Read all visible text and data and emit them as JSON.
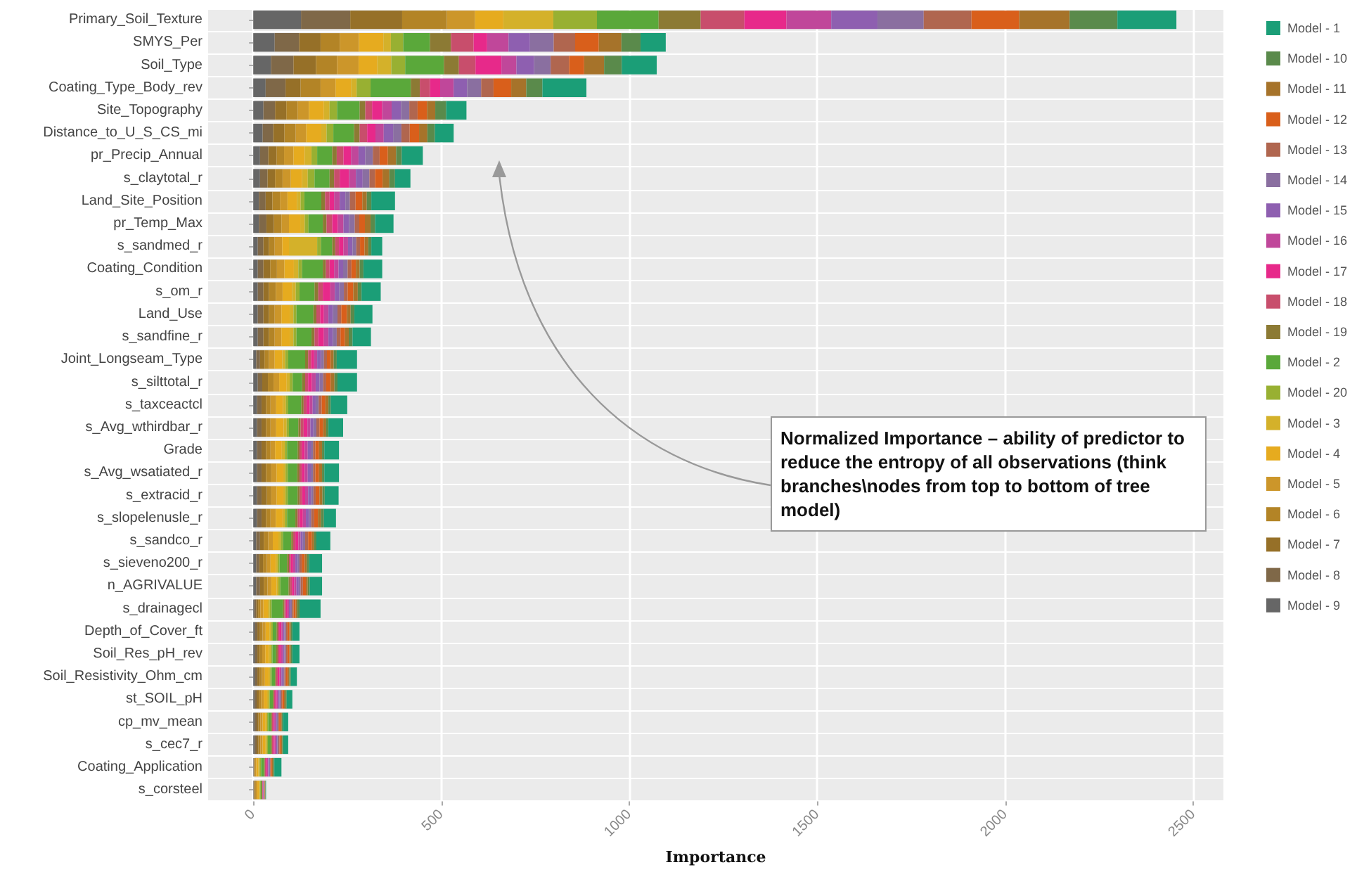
{
  "chart_data": {
    "type": "bar",
    "orientation": "horizontal",
    "stacked": true,
    "xlabel": "Importance",
    "categories": [
      "Primary_Soil_Texture",
      "SMYS_Per",
      "Soil_Type",
      "Coating_Type_Body_rev",
      "Site_Topography",
      "Distance_to_U_S_CS_mi",
      "pr_Precip_Annual",
      "s_claytotal_r",
      "Land_Site_Position",
      "pr_Temp_Max",
      "s_sandmed_r",
      "Coating_Condition",
      "s_om_r",
      "Land_Use",
      "s_sandfine_r",
      "Joint_Longseam_Type",
      "s_silttotal_r",
      "s_taxceactcl",
      "s_Avg_wthirdbar_r",
      "Grade",
      "s_Avg_wsatiated_r",
      "s_extracid_r",
      "s_slopelenusle_r",
      "s_sandco_r",
      "s_sieveno200_r",
      "n_AGRIVALUE",
      "s_drainagecl",
      "Depth_of_Cover_ft",
      "Soil_Res_pH_rev",
      "Soil_Resistivity_Ohm_cm",
      "st_SOIL_pH",
      "cp_mv_mean",
      "s_cec7_r",
      "Coating_Application",
      "s_corsteel"
    ],
    "series": [
      {
        "name": "Model - 9",
        "color": "#666666",
        "values": [
          127,
          57,
          47,
          33,
          27,
          25,
          18,
          18,
          15,
          15,
          12,
          12,
          12,
          12,
          12,
          8,
          12,
          10,
          10,
          10,
          10,
          10,
          10,
          8,
          8,
          8,
          3,
          5,
          5,
          5,
          4,
          4,
          4,
          1,
          1
        ]
      },
      {
        "name": "Model - 8",
        "color": "#7f6848",
        "values": [
          131,
          65,
          60,
          53,
          31,
          28,
          22,
          20,
          18,
          20,
          15,
          15,
          15,
          15,
          15,
          10,
          12,
          12,
          12,
          12,
          12,
          12,
          12,
          10,
          8,
          10,
          5,
          6,
          6,
          6,
          5,
          5,
          5,
          1,
          1
        ]
      },
      {
        "name": "Model - 7",
        "color": "#967028",
        "values": [
          138,
          57,
          60,
          40,
          30,
          30,
          22,
          20,
          18,
          20,
          15,
          18,
          15,
          15,
          15,
          12,
          15,
          12,
          12,
          12,
          12,
          14,
          12,
          10,
          10,
          10,
          5,
          7,
          6,
          6,
          6,
          5,
          5,
          1,
          2
        ]
      },
      {
        "name": "Model - 6",
        "color": "#b38426",
        "values": [
          119,
          51,
          56,
          53,
          30,
          30,
          20,
          20,
          20,
          20,
          15,
          18,
          18,
          15,
          15,
          12,
          15,
          12,
          12,
          12,
          14,
          12,
          12,
          12,
          10,
          10,
          6,
          7,
          7,
          6,
          6,
          5,
          5,
          2,
          3
        ]
      },
      {
        "name": "Model - 5",
        "color": "#cc962a",
        "values": [
          75,
          51,
          57,
          40,
          30,
          28,
          25,
          22,
          20,
          20,
          20,
          20,
          18,
          18,
          18,
          15,
          15,
          15,
          15,
          12,
          14,
          14,
          14,
          12,
          10,
          10,
          8,
          8,
          8,
          8,
          7,
          6,
          6,
          3,
          4
        ]
      },
      {
        "name": "Model - 4",
        "color": "#e6ab1f",
        "values": [
          75,
          65,
          50,
          41,
          40,
          40,
          30,
          30,
          25,
          30,
          18,
          25,
          25,
          22,
          22,
          20,
          20,
          18,
          20,
          18,
          18,
          18,
          18,
          15,
          14,
          14,
          12,
          10,
          10,
          10,
          9,
          8,
          8,
          6,
          4
        ]
      },
      {
        "name": "Model - 3",
        "color": "#d4b12a",
        "values": [
          133,
          20,
          37,
          15,
          15,
          14,
          18,
          15,
          10,
          12,
          75,
          12,
          10,
          10,
          10,
          8,
          8,
          8,
          8,
          8,
          6,
          6,
          6,
          6,
          5,
          5,
          5,
          5,
          5,
          4,
          4,
          4,
          3,
          3,
          3
        ]
      },
      {
        "name": "Model - 20",
        "color": "#98b032",
        "values": [
          116,
          33,
          37,
          37,
          20,
          18,
          15,
          18,
          10,
          10,
          10,
          10,
          10,
          8,
          8,
          8,
          8,
          6,
          6,
          6,
          6,
          6,
          6,
          6,
          5,
          5,
          5,
          4,
          4,
          4,
          3,
          3,
          3,
          4,
          2
        ]
      },
      {
        "name": "Model - 2",
        "color": "#5aa83a",
        "values": [
          164,
          71,
          103,
          107,
          60,
          55,
          40,
          40,
          45,
          38,
          30,
          55,
          40,
          45,
          40,
          45,
          25,
          35,
          25,
          28,
          25,
          26,
          22,
          22,
          20,
          22,
          30,
          10,
          10,
          9,
          8,
          7,
          8,
          8,
          2
        ]
      },
      {
        "name": "Model - 19",
        "color": "#8c7a34",
        "values": [
          112,
          56,
          40,
          24,
          15,
          15,
          12,
          12,
          10,
          10,
          8,
          8,
          10,
          8,
          8,
          8,
          8,
          6,
          6,
          5,
          6,
          6,
          6,
          5,
          5,
          4,
          4,
          3,
          4,
          3,
          3,
          3,
          3,
          2,
          2
        ]
      },
      {
        "name": "Model - 18",
        "color": "#c84e6c",
        "values": [
          116,
          60,
          44,
          27,
          18,
          20,
          18,
          15,
          12,
          15,
          10,
          10,
          12,
          10,
          10,
          8,
          8,
          8,
          8,
          6,
          6,
          6,
          6,
          6,
          5,
          5,
          4,
          4,
          4,
          4,
          3,
          3,
          3,
          3,
          1
        ]
      },
      {
        "name": "Model - 17",
        "color": "#e7298a",
        "values": [
          112,
          36,
          69,
          27,
          27,
          22,
          20,
          25,
          12,
          15,
          12,
          12,
          20,
          10,
          15,
          8,
          10,
          8,
          10,
          8,
          8,
          8,
          8,
          8,
          6,
          6,
          4,
          6,
          5,
          5,
          4,
          3,
          4,
          3,
          1
        ]
      },
      {
        "name": "Model - 16",
        "color": "#c0479a",
        "values": [
          119,
          57,
          40,
          36,
          25,
          22,
          20,
          18,
          15,
          15,
          12,
          12,
          12,
          12,
          12,
          8,
          10,
          8,
          8,
          8,
          8,
          8,
          8,
          6,
          6,
          6,
          4,
          4,
          5,
          5,
          4,
          4,
          4,
          3,
          1
        ]
      },
      {
        "name": "Model - 15",
        "color": "#8e5fb0",
        "values": [
          123,
          57,
          47,
          36,
          25,
          25,
          18,
          18,
          15,
          15,
          12,
          12,
          12,
          12,
          12,
          10,
          10,
          8,
          8,
          8,
          8,
          8,
          8,
          6,
          6,
          6,
          4,
          4,
          4,
          4,
          4,
          3,
          3,
          2,
          1
        ]
      },
      {
        "name": "Model - 14",
        "color": "#8a6fa0",
        "values": [
          123,
          63,
          44,
          37,
          22,
          22,
          20,
          18,
          12,
          15,
          10,
          12,
          12,
          12,
          10,
          8,
          10,
          8,
          8,
          6,
          6,
          6,
          6,
          6,
          5,
          5,
          4,
          4,
          4,
          4,
          4,
          3,
          3,
          3,
          1
        ]
      },
      {
        "name": "Model - 13",
        "color": "#b0664f",
        "values": [
          127,
          57,
          49,
          33,
          22,
          22,
          18,
          15,
          15,
          12,
          10,
          10,
          10,
          10,
          10,
          8,
          8,
          8,
          8,
          6,
          6,
          6,
          8,
          8,
          6,
          6,
          4,
          4,
          4,
          4,
          3,
          3,
          3,
          2,
          1
        ]
      },
      {
        "name": "Model - 12",
        "color": "#d95f1b",
        "values": [
          127,
          63,
          40,
          47,
          25,
          25,
          22,
          20,
          18,
          15,
          12,
          12,
          15,
          15,
          12,
          10,
          12,
          10,
          10,
          10,
          10,
          10,
          10,
          10,
          8,
          8,
          6,
          5,
          5,
          5,
          5,
          4,
          4,
          3,
          1
        ]
      },
      {
        "name": "Model - 11",
        "color": "#a6732a",
        "values": [
          134,
          60,
          53,
          40,
          22,
          22,
          22,
          18,
          12,
          15,
          10,
          10,
          12,
          10,
          10,
          8,
          10,
          8,
          8,
          8,
          8,
          8,
          8,
          6,
          6,
          5,
          4,
          4,
          4,
          4,
          4,
          3,
          3,
          3,
          1
        ]
      },
      {
        "name": "Model - 10",
        "color": "#5a8a4b",
        "values": [
          127,
          51,
          47,
          43,
          29,
          20,
          15,
          15,
          12,
          12,
          8,
          10,
          10,
          10,
          10,
          8,
          8,
          6,
          6,
          6,
          6,
          6,
          8,
          6,
          5,
          5,
          6,
          4,
          4,
          4,
          3,
          3,
          3,
          3,
          1
        ]
      },
      {
        "name": "Model - 1",
        "color": "#1b9e77",
        "values": [
          157,
          67,
          93,
          117,
          54,
          50,
          56,
          41,
          63,
          49,
          29,
          50,
          51,
          48,
          49,
          54,
          52,
          44,
          39,
          39,
          39,
          37,
          32,
          37,
          35,
          33,
          56,
          19,
          19,
          16,
          15,
          14,
          13,
          19,
          1
        ]
      }
    ],
    "xlim": [
      -120,
      2580
    ],
    "xticks": [
      0,
      500,
      1000,
      1500,
      2000,
      2500
    ],
    "grid": true,
    "legend": "right",
    "annotations": [
      "Normalized Importance – ability of predictor to reduce the entropy of all observations (think branches\\nodes from top to bottom of tree model)"
    ]
  }
}
